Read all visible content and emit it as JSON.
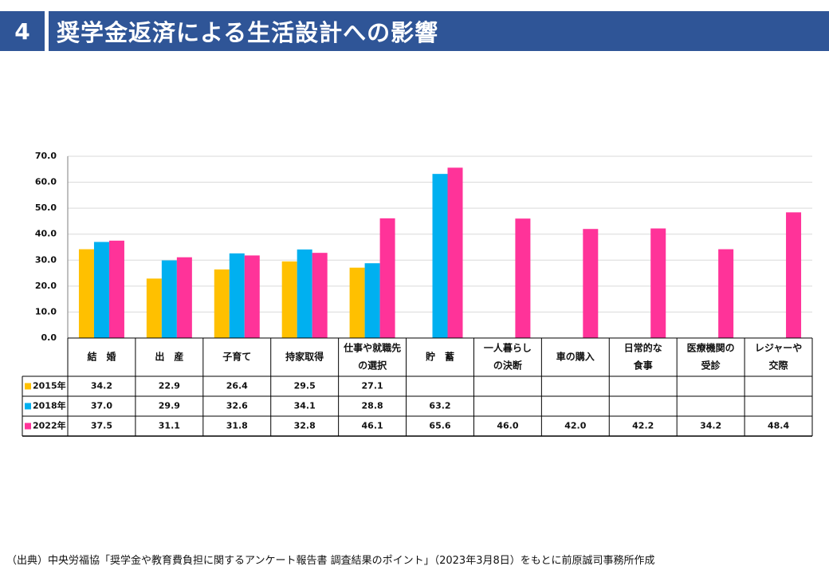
{
  "header": {
    "number": "4",
    "title": "奨学金返済による生活設計への影響"
  },
  "colors": {
    "header_bg": "#2F5597",
    "s2015": "#FFC000",
    "s2018": "#00B0F0",
    "s2022": "#FF3399"
  },
  "chart_data": {
    "type": "bar",
    "title": "",
    "xlabel": "",
    "ylabel": "",
    "ylim": [
      0,
      70
    ],
    "yticks": [
      "0.0",
      "10.0",
      "20.0",
      "30.0",
      "40.0",
      "50.0",
      "60.0",
      "70.0"
    ],
    "grid": true,
    "categories": [
      [
        "結　婚"
      ],
      [
        "出　産"
      ],
      [
        "子育て"
      ],
      [
        "持家取得"
      ],
      [
        "仕事や就職先",
        "の選択"
      ],
      [
        "貯　蓄"
      ],
      [
        "一人暮らし",
        "の決断"
      ],
      [
        "車の購入"
      ],
      [
        "日常的な",
        "食事"
      ],
      [
        "医療機関の",
        "受診"
      ],
      [
        "レジャーや",
        "交際"
      ]
    ],
    "series": [
      {
        "name": "2015年",
        "color": "#FFC000",
        "values": [
          34.2,
          22.9,
          26.4,
          29.5,
          27.1,
          null,
          null,
          null,
          null,
          null,
          null
        ],
        "labels": [
          "34.2",
          "22.9",
          "26.4",
          "29.5",
          "27.1",
          "",
          "",
          "",
          "",
          "",
          ""
        ]
      },
      {
        "name": "2018年",
        "color": "#00B0F0",
        "values": [
          37.0,
          29.9,
          32.6,
          34.1,
          28.8,
          63.2,
          null,
          null,
          null,
          null,
          null
        ],
        "labels": [
          "37.0",
          "29.9",
          "32.6",
          "34.1",
          "28.8",
          "63.2",
          "",
          "",
          "",
          "",
          ""
        ]
      },
      {
        "name": "2022年",
        "color": "#FF3399",
        "values": [
          37.5,
          31.1,
          31.8,
          32.8,
          46.1,
          65.6,
          46.0,
          42.0,
          42.2,
          34.2,
          48.4
        ],
        "labels": [
          "37.5",
          "31.1",
          "31.8",
          "32.8",
          "46.1",
          "65.6",
          "46.0",
          "42.0",
          "42.2",
          "34.2",
          "48.4"
        ]
      }
    ]
  },
  "source": "（出典）中央労福協「奨学金や教育費負担に関するアンケート報告書 調査結果のポイント」（2023年3月8日）をもとに前原誠司事務所作成"
}
